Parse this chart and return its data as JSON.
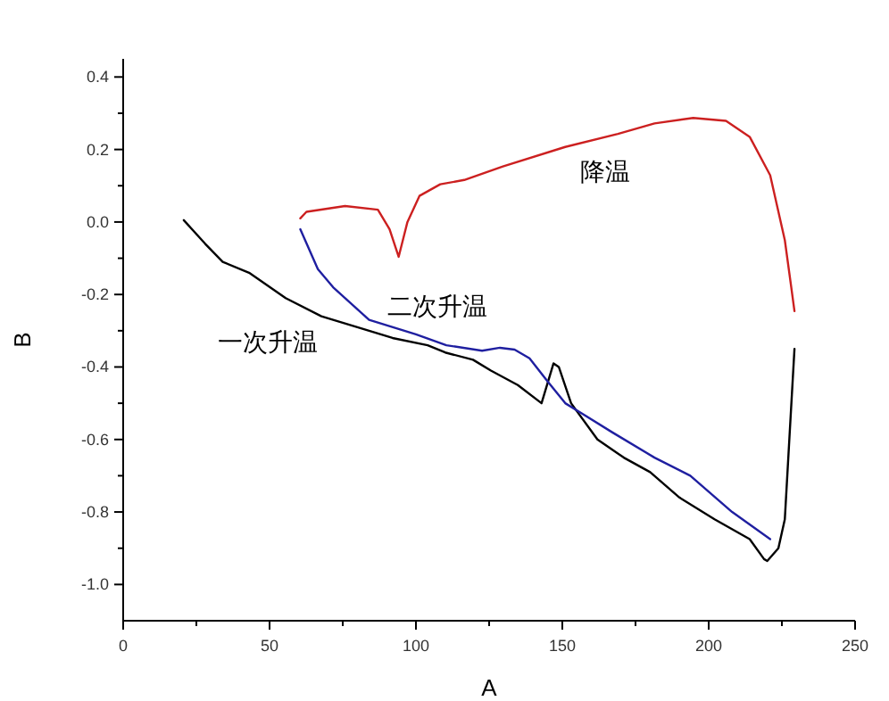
{
  "chart_data": {
    "type": "line",
    "xlabel": "A",
    "ylabel": "B",
    "xlim": [
      0,
      250
    ],
    "ylim": [
      -1.1,
      0.45
    ],
    "xticks": [
      0,
      50,
      100,
      150,
      200,
      250
    ],
    "yticks": [
      {
        "value": -1.0,
        "label": "-1.0"
      },
      -0.8,
      -0.6,
      -0.4,
      -0.2,
      {
        "value": 0.0,
        "label": "0.0"
      },
      0.2,
      0.4
    ],
    "grid": false,
    "marker": "none",
    "line_style": "solid",
    "series": [
      {
        "name": "一次升温",
        "color": "#000000",
        "x": [
          20.7,
          28,
          34,
          43,
          55.5,
          67.7,
          80,
          92,
          104,
          110,
          119.5,
          125.6,
          134.8,
          142.9,
          147,
          148.8,
          153,
          162,
          171,
          180,
          190,
          202,
          214,
          218.9,
          220,
          223.8,
          226,
          227.4,
          229.3
        ],
        "values": [
          0.005,
          -0.06,
          -0.11,
          -0.14,
          -0.21,
          -0.26,
          -0.29,
          -0.32,
          -0.34,
          -0.36,
          -0.38,
          -0.41,
          -0.45,
          -0.5,
          -0.39,
          -0.4,
          -0.5,
          -0.6,
          -0.65,
          -0.69,
          -0.76,
          -0.82,
          -0.875,
          -0.93,
          -0.935,
          -0.9,
          -0.82,
          -0.62,
          -0.35
        ]
      },
      {
        "name": "二次升温",
        "color": "#1f1fa0",
        "x": [
          60.5,
          66.5,
          71.7,
          84,
          100,
          110.4,
          122.6,
          128.7,
          133.7,
          138.8,
          145,
          151,
          157,
          167,
          181.5,
          193.7,
          208,
          221
        ],
        "values": [
          -0.02,
          -0.13,
          -0.18,
          -0.27,
          -0.31,
          -0.34,
          -0.355,
          -0.347,
          -0.352,
          -0.376,
          -0.44,
          -0.5,
          -0.53,
          -0.58,
          -0.65,
          -0.7,
          -0.8,
          -0.875
        ]
      },
      {
        "name": "降温",
        "color": "#cc2020",
        "x": [
          60.5,
          62.6,
          75.8,
          87,
          91,
          94.1,
          97.1,
          101.2,
          108.3,
          116.5,
          129.7,
          151,
          169,
          181.5,
          194.7,
          205.9,
          214,
          221,
          226,
          228.2,
          229.3
        ],
        "values": [
          0.01,
          0.028,
          0.044,
          0.034,
          -0.02,
          -0.096,
          0,
          0.072,
          0.104,
          0.116,
          0.153,
          0.207,
          0.243,
          0.272,
          0.287,
          0.279,
          0.235,
          0.129,
          -0.05,
          -0.18,
          -0.246
        ]
      }
    ]
  }
}
